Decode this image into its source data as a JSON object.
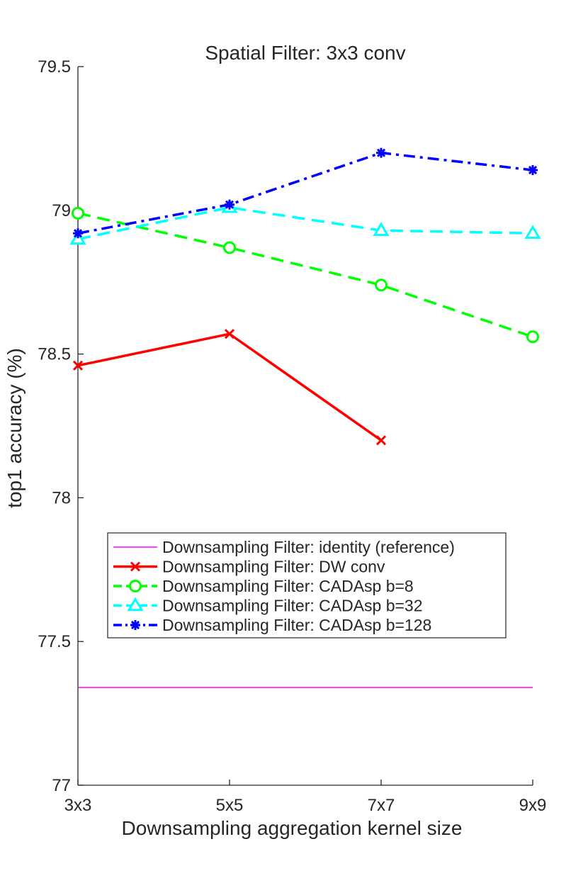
{
  "chart_data": {
    "type": "line",
    "title": "Spatial Filter: 3x3 conv",
    "xlabel": "Downsampling aggregation kernel size",
    "ylabel": "top1 accuracy (%)",
    "categories": [
      "3x3",
      "5x5",
      "7x7",
      "9x9"
    ],
    "ylim": [
      77,
      79.5
    ],
    "yticks": [
      "77",
      "77.5",
      "78",
      "78.5",
      "79",
      "79.5"
    ],
    "grid": false,
    "legend_position": "lower-left",
    "series": [
      {
        "name": "Downsampling Filter: identity (reference)",
        "values": [
          77.34,
          77.34,
          77.34,
          77.34
        ],
        "color": "#ff00ff",
        "linestyle": "solid",
        "marker": "none"
      },
      {
        "name": "Downsampling Filter: DW conv",
        "values": [
          78.46,
          78.57,
          78.2,
          null
        ],
        "color": "#ff0000",
        "linestyle": "solid",
        "marker": "x"
      },
      {
        "name": "Downsampling Filter: CADAsp b=8",
        "values": [
          78.99,
          78.87,
          78.74,
          78.56
        ],
        "color": "#00ff00",
        "linestyle": "dashed",
        "marker": "circle"
      },
      {
        "name": "Downsampling Filter: CADAsp b=32",
        "values": [
          78.9,
          79.01,
          78.93,
          78.92
        ],
        "color": "#00ffff",
        "linestyle": "dashed",
        "marker": "triangle"
      },
      {
        "name": "Downsampling Filter: CADAsp b=128",
        "values": [
          78.92,
          79.02,
          79.2,
          79.14
        ],
        "color": "#0000ff",
        "linestyle": "dashdot",
        "marker": "asterisk"
      }
    ]
  }
}
